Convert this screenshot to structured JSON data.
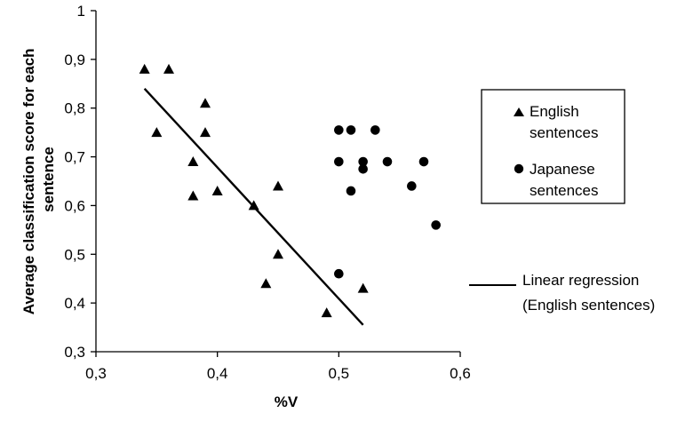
{
  "chart_data": {
    "type": "scatter",
    "xlabel": "%V",
    "ylabel": "Average classification score for each sentence",
    "xlim": [
      0.3,
      0.6
    ],
    "ylim": [
      0.3,
      1.0
    ],
    "x_ticks": [
      "0,3",
      "0,4",
      "0,5",
      "0,6"
    ],
    "y_ticks": [
      "0,3",
      "0,4",
      "0,5",
      "0,6",
      "0,7",
      "0,8",
      "0,9",
      "1"
    ],
    "grid": false,
    "legend_position": "right",
    "series": [
      {
        "name": "English sentences",
        "marker": "triangle",
        "color": "#000000",
        "points": [
          [
            0.34,
            0.88
          ],
          [
            0.36,
            0.88
          ],
          [
            0.35,
            0.75
          ],
          [
            0.39,
            0.81
          ],
          [
            0.39,
            0.75
          ],
          [
            0.38,
            0.69
          ],
          [
            0.38,
            0.62
          ],
          [
            0.4,
            0.63
          ],
          [
            0.43,
            0.6
          ],
          [
            0.45,
            0.64
          ],
          [
            0.45,
            0.5
          ],
          [
            0.44,
            0.44
          ],
          [
            0.49,
            0.38
          ],
          [
            0.52,
            0.43
          ]
        ]
      },
      {
        "name": "Japanese sentences",
        "marker": "circle",
        "color": "#000000",
        "points": [
          [
            0.5,
            0.755
          ],
          [
            0.51,
            0.755
          ],
          [
            0.53,
            0.755
          ],
          [
            0.5,
            0.69
          ],
          [
            0.52,
            0.69
          ],
          [
            0.52,
            0.675
          ],
          [
            0.54,
            0.69
          ],
          [
            0.57,
            0.69
          ],
          [
            0.51,
            0.63
          ],
          [
            0.56,
            0.64
          ],
          [
            0.58,
            0.56
          ],
          [
            0.5,
            0.46
          ]
        ]
      }
    ],
    "regression": {
      "name": "Linear regression (English sentences)",
      "label_lines": [
        "Linear regression",
        "(English sentences)"
      ],
      "x": [
        0.34,
        0.52
      ],
      "y": [
        0.84,
        0.355
      ]
    },
    "legend": {
      "english_lines": [
        "English",
        "sentences"
      ],
      "japanese_lines": [
        "Japanese",
        "sentences"
      ]
    }
  }
}
